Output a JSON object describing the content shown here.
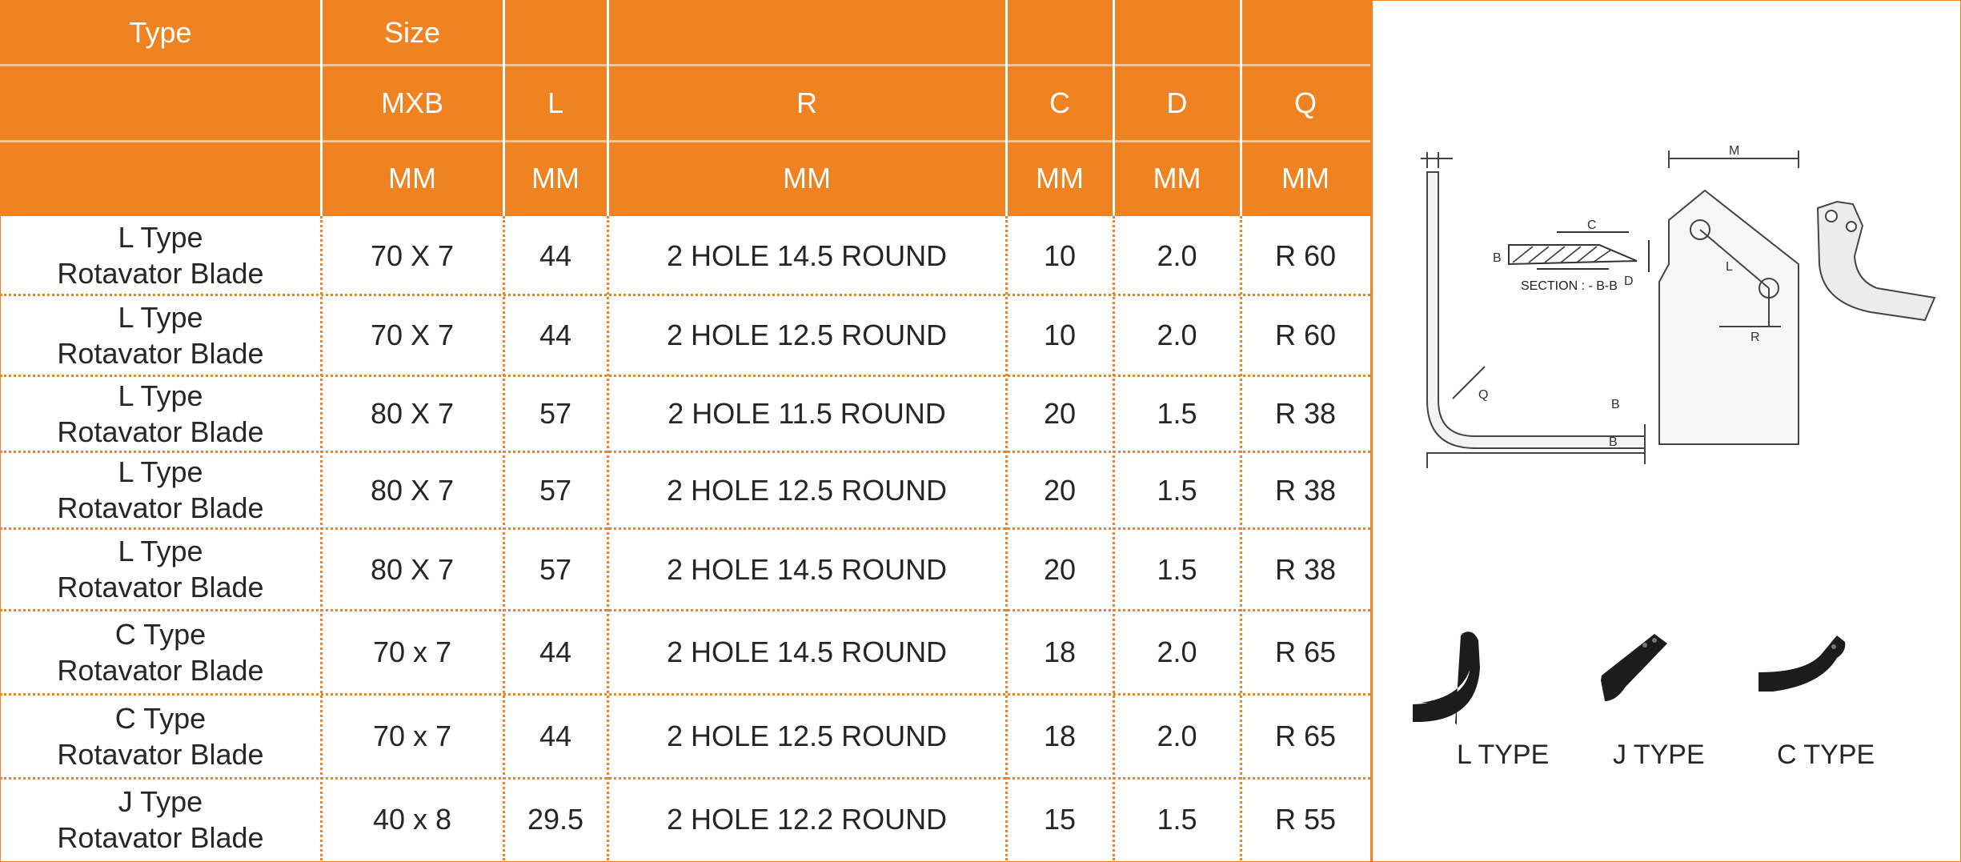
{
  "table": {
    "header_row1": [
      "Type",
      "Size",
      "",
      "",
      "",
      "",
      ""
    ],
    "header_row2": [
      "",
      "MXB",
      "L",
      "R",
      "C",
      "D",
      "Q"
    ],
    "header_row3": [
      "",
      "MM",
      "MM",
      "MM",
      "MM",
      "MM",
      "MM"
    ],
    "rows": [
      {
        "type_line1": "L Type",
        "type_line2": "Rotavator Blade",
        "mxb": "70 X 7",
        "l": "44",
        "r": "2 HOLE 14.5 ROUND",
        "c": "10",
        "d": "2.0",
        "q": "R 60"
      },
      {
        "type_line1": "L Type",
        "type_line2": "Rotavator Blade",
        "mxb": "70 X 7",
        "l": "44",
        "r": "2 HOLE 12.5 ROUND",
        "c": "10",
        "d": "2.0",
        "q": "R 60"
      },
      {
        "type_line1": "L Type",
        "type_line2": "Rotavator Blade",
        "mxb": "80 X 7",
        "l": "57",
        "r": "2 HOLE 11.5 ROUND",
        "c": "20",
        "d": "1.5",
        "q": "R 38"
      },
      {
        "type_line1": "L Type",
        "type_line2": "Rotavator Blade",
        "mxb": "80 X 7",
        "l": "57",
        "r": "2 HOLE 12.5 ROUND",
        "c": "20",
        "d": "1.5",
        "q": "R 38"
      },
      {
        "type_line1": "L Type",
        "type_line2": "Rotavator Blade",
        "mxb": "80 X 7",
        "l": "57",
        "r": "2 HOLE 14.5 ROUND",
        "c": "20",
        "d": "1.5",
        "q": "R 38"
      },
      {
        "type_line1": "C Type",
        "type_line2": "Rotavator Blade",
        "mxb": "70 x 7",
        "l": "44",
        "r": "2 HOLE 14.5 ROUND",
        "c": "18",
        "d": "2.0",
        "q": "R 65"
      },
      {
        "type_line1": "C Type",
        "type_line2": "Rotavator Blade",
        "mxb": "70 x 7",
        "l": "44",
        "r": "2 HOLE 12.5 ROUND",
        "c": "18",
        "d": "2.0",
        "q": "R 65"
      },
      {
        "type_line1": "J Type",
        "type_line2": "Rotavator Blade",
        "mxb": "40 x 8",
        "l": "29.5",
        "r": "2 HOLE 12.2 ROUND",
        "c": "15",
        "d": "1.5",
        "q": "R 55"
      }
    ]
  },
  "diagram": {
    "labels": {
      "m": "M",
      "b_section": "B",
      "c": "C",
      "d": "D",
      "section": "SECTION : - B-B",
      "l": "L",
      "r": "R",
      "q": "Q",
      "b_top": "B",
      "b_bottom": "B"
    }
  },
  "blade_types": [
    "L TYPE",
    "J TYPE",
    "C TYPE"
  ],
  "colors": {
    "accent": "#ef8221",
    "text": "#262626",
    "header_text": "#ffffff"
  }
}
